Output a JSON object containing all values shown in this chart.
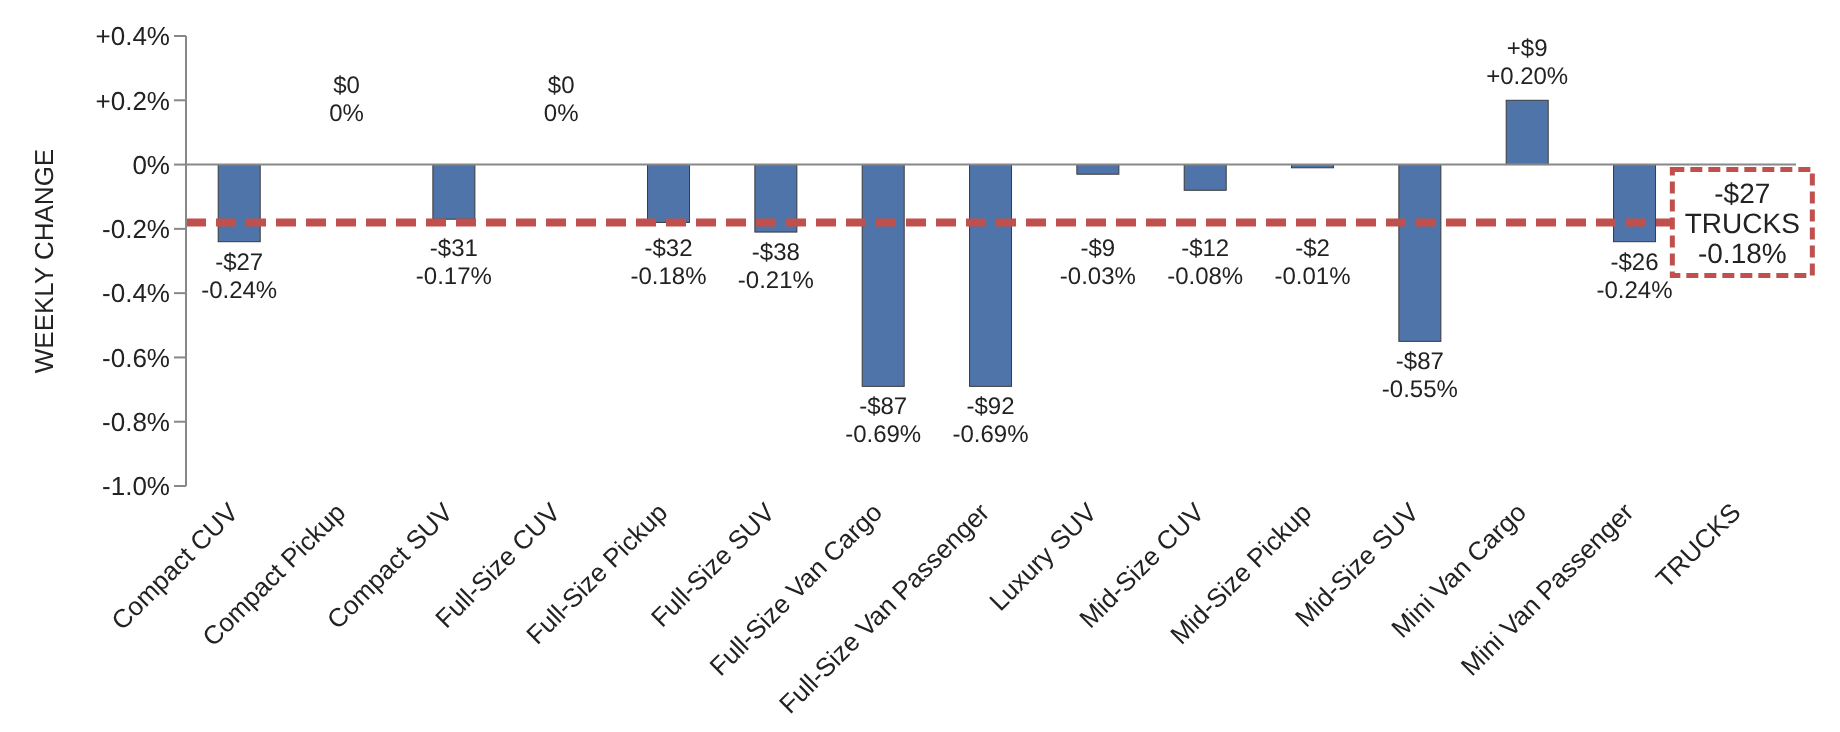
{
  "chart_data": {
    "type": "bar",
    "ylabel": "WEEKLY CHANGE",
    "categories": [
      "Compact CUV",
      "Compact Pickup",
      "Compact SUV",
      "Full-Size CUV",
      "Full-Size Pickup",
      "Full-Size SUV",
      "Full-Size Van Cargo",
      "Full-Size Van Passenger",
      "Luxury SUV",
      "Mid-Size CUV",
      "Mid-Size Pickup",
      "Mid-Size SUV",
      "Mini Van Cargo",
      "Mini Van Passenger",
      "TRUCKS"
    ],
    "values": [
      -0.24,
      0,
      -0.17,
      0,
      -0.18,
      -0.21,
      -0.69,
      -0.69,
      -0.03,
      -0.08,
      -0.01,
      -0.55,
      0.2,
      -0.24,
      null
    ],
    "value_labels": [
      "-$27\n-0.24%",
      "$0\n0%",
      "-$31\n-0.17%",
      "$0\n0%",
      "-$32\n-0.18%",
      "-$38\n-0.21%",
      "-$87\n-0.69%",
      "-$92\n-0.69%",
      "-$9\n-0.03%",
      "-$12\n-0.08%",
      "-$2\n-0.01%",
      "-$87\n-0.55%",
      "+$9\n+0.20%",
      "-$26\n-0.24%",
      null
    ],
    "color": "#4f74aa",
    "ylim": [
      -1.0,
      0.4
    ],
    "yticks": [
      {
        "value": -1.0,
        "label": "-1.0%"
      },
      {
        "value": -0.8,
        "label": "-0.8%"
      },
      {
        "value": -0.6,
        "label": "-0.6%"
      },
      {
        "value": -0.4,
        "label": "-0.4%"
      },
      {
        "value": -0.2,
        "label": "-0.2%"
      },
      {
        "value": 0,
        "label": "0%"
      },
      {
        "value": 0.2,
        "label": "+0.2%"
      },
      {
        "value": 0.4,
        "label": "+0.4%"
      }
    ],
    "ref_lines": [
      {
        "axis": "y",
        "value": -0.18,
        "label": "-$27\nTRUCKS\n-0.18%",
        "color": "#c0504d",
        "line_style": "dashed"
      }
    ],
    "legend": false
  }
}
